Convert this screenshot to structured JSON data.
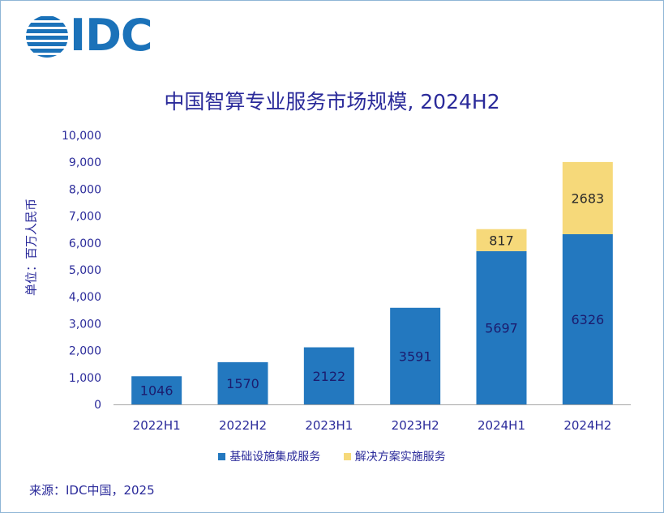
{
  "brand": {
    "logo_text": "IDC",
    "color": "#1b72b9"
  },
  "source": "来源：IDC中国，2025",
  "colors": {
    "base": "#2378bf",
    "solution": "#f6d97a",
    "text": "#2a2a9a",
    "axis": "#a6a6a6"
  },
  "chart_data": {
    "type": "bar",
    "stacked": true,
    "title": "中国智算专业服务市场规模, 2024H2",
    "xlabel": "",
    "ylabel": "单位：百万人民币",
    "ylim": [
      0,
      10000
    ],
    "yticks": [
      "0",
      "1,000",
      "2,000",
      "3,000",
      "4,000",
      "5,000",
      "6,000",
      "7,000",
      "8,000",
      "9,000",
      "10,000"
    ],
    "categories": [
      "2022H1",
      "2022H2",
      "2023H1",
      "2023H2",
      "2024H1",
      "2024H2"
    ],
    "series": [
      {
        "name": "基础设施集成服务",
        "values": [
          1046,
          1570,
          2122,
          3591,
          5697,
          6326
        ],
        "labels": [
          "1046",
          "1570",
          "2122",
          "3591",
          "5697",
          "6326"
        ]
      },
      {
        "name": "解决方案实施服务",
        "values": [
          0,
          0,
          0,
          0,
          817,
          2683
        ],
        "labels": [
          "",
          "",
          "",
          "",
          "817",
          "2683"
        ]
      }
    ],
    "legend_position": "bottom",
    "grid": false
  }
}
